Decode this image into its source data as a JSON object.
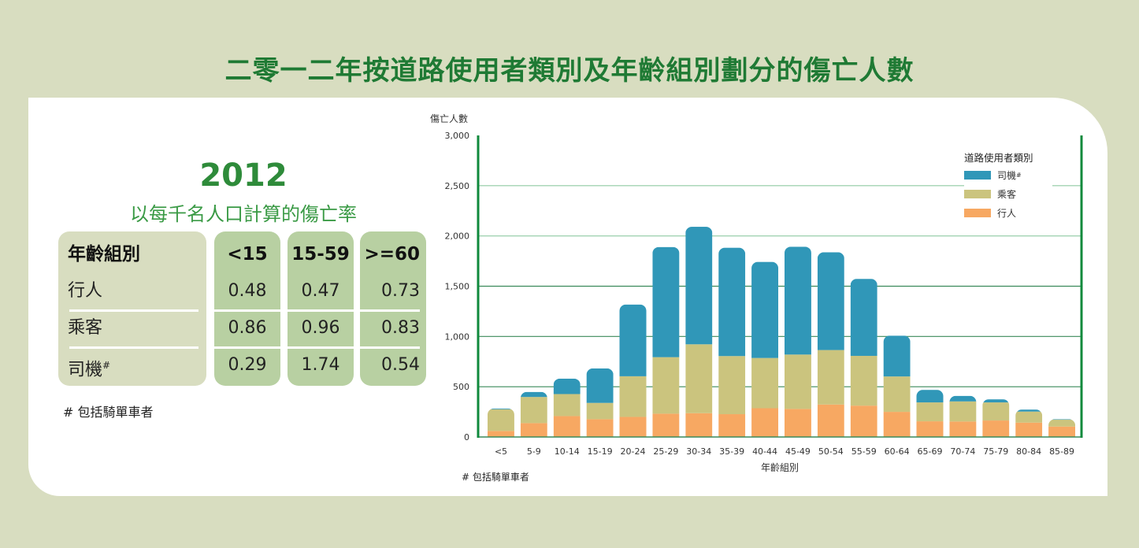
{
  "title": "二零一二年按道路使用者類別及年齡組別劃分的傷亡人數",
  "rate_table": {
    "year": "2012",
    "subtitle": "以每千名人口計算的傷亡率",
    "headers": [
      "年齡組別",
      "<15",
      "15-59",
      ">=60"
    ],
    "rows": [
      {
        "label": "行人",
        "values": [
          "0.48",
          "0.47",
          "0.73"
        ]
      },
      {
        "label": "乘客",
        "values": [
          "0.86",
          "0.96",
          "0.83"
        ]
      },
      {
        "label": "司機",
        "sup": "#",
        "values": [
          "0.29",
          "1.74",
          "0.54"
        ]
      }
    ],
    "footnote": "# 包括騎單車者"
  },
  "chart_data": {
    "type": "bar",
    "stacked": true,
    "ylabel": "傷亡人數",
    "xlabel": "年齡組別",
    "ylim": [
      0,
      3000
    ],
    "yticks": [
      "0",
      "500",
      "1,000",
      "1,500",
      "2,000",
      "2,500",
      "3,000"
    ],
    "grid": true,
    "legend_title": "道路使用者類別",
    "legend_position": "top-right",
    "footnote": "# 包括騎單車者",
    "categories": [
      "<5",
      "5-9",
      "10-14",
      "15-19",
      "20-24",
      "25-29",
      "30-34",
      "35-39",
      "40-44",
      "45-49",
      "50-54",
      "55-59",
      "60-64",
      "65-69",
      "70-74",
      "75-79",
      "80-84",
      "85-89"
    ],
    "series": [
      {
        "name": "行人",
        "color": "#f7a862",
        "values": [
          60,
          138,
          208,
          177,
          200,
          232,
          237,
          227,
          286,
          279,
          323,
          312,
          250,
          156,
          154,
          164,
          143,
          104
        ]
      },
      {
        "name": "乘客",
        "color": "#cbc47e",
        "values": [
          216,
          260,
          219,
          162,
          404,
          562,
          685,
          578,
          500,
          541,
          542,
          495,
          352,
          188,
          200,
          180,
          110,
          68
        ]
      },
      {
        "name": "司機",
        "sup": "#",
        "color": "#3097b8",
        "values": [
          8,
          50,
          154,
          343,
          714,
          1096,
          1169,
          1078,
          956,
          1073,
          973,
          766,
          406,
          125,
          55,
          31,
          20,
          5
        ]
      }
    ],
    "legend_order": [
      2,
      1,
      0
    ]
  }
}
